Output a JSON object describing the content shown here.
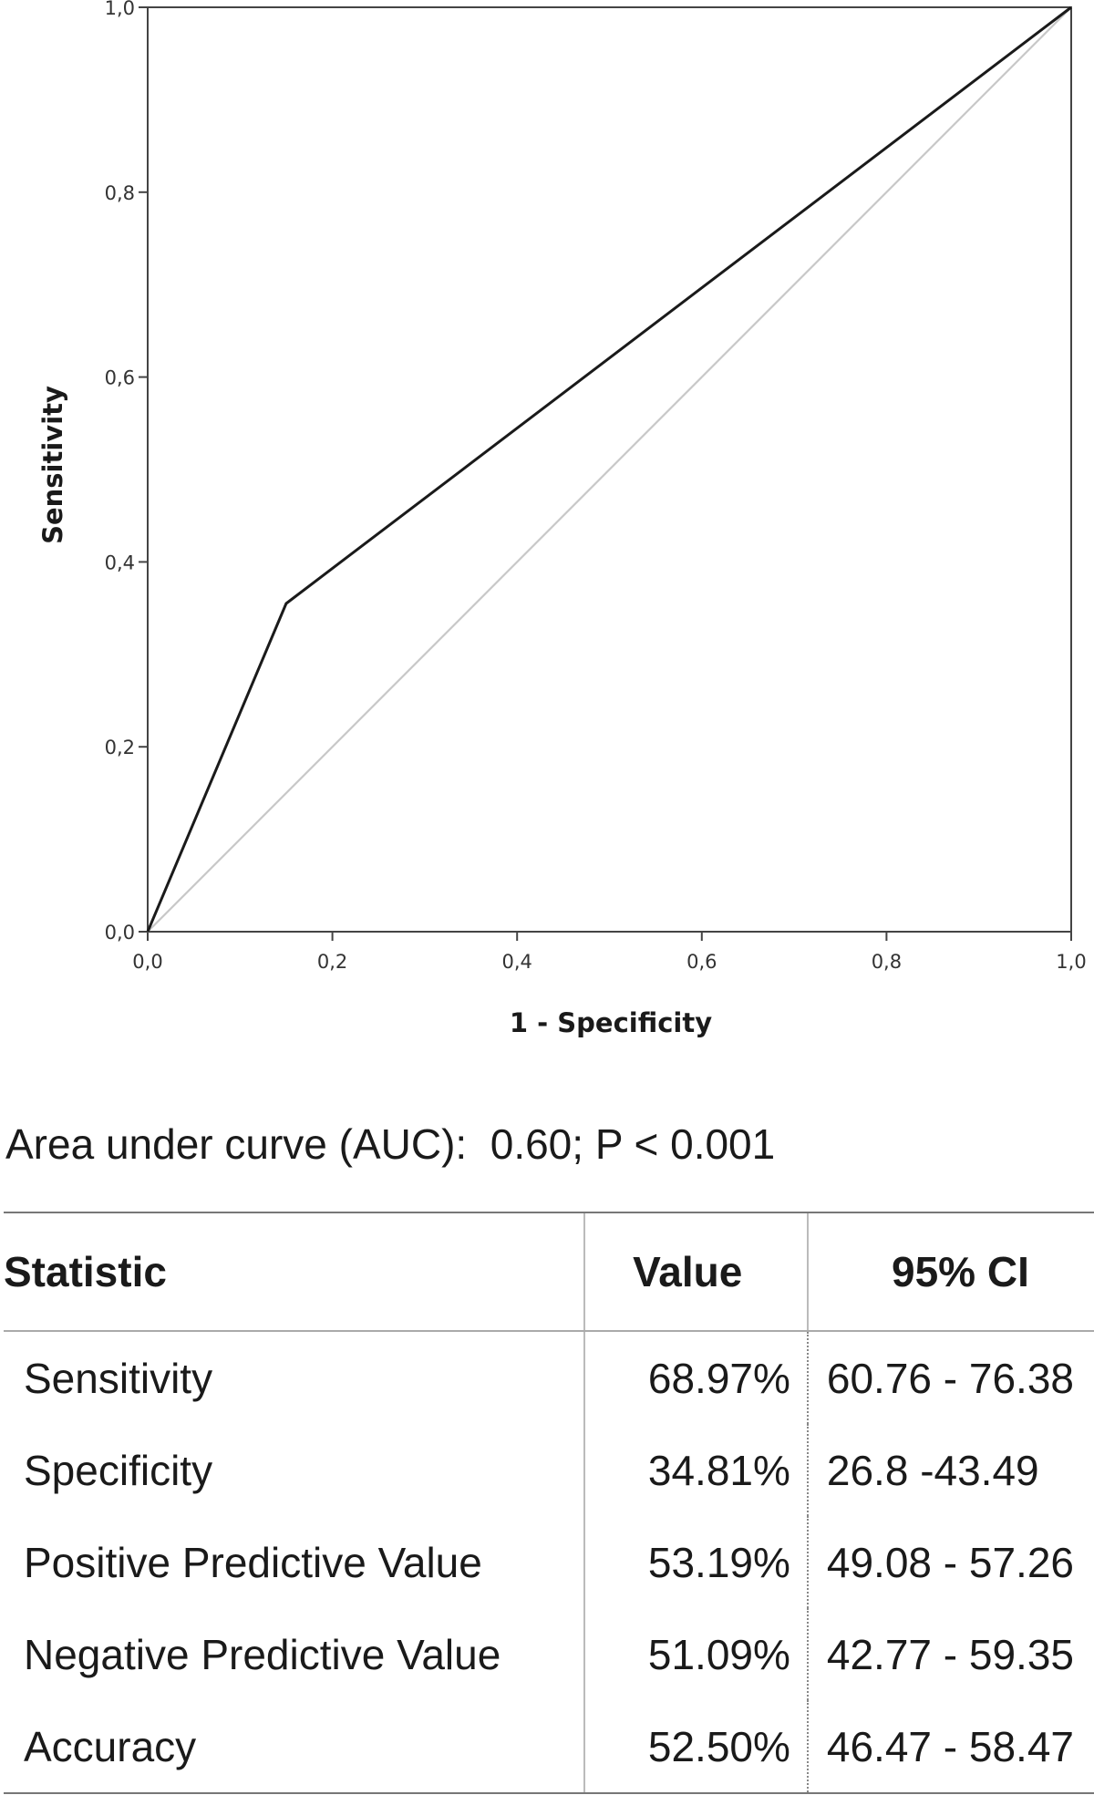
{
  "chart_data": {
    "type": "line",
    "xlabel": "1 - Specificity",
    "ylabel": "Sensitivity",
    "xlim": [
      0,
      1
    ],
    "ylim": [
      0,
      1
    ],
    "x_ticks": [
      "0,0",
      "0,2",
      "0,4",
      "0,6",
      "0,8",
      "1,0"
    ],
    "y_ticks": [
      "0,0",
      "0,2",
      "0,4",
      "0,6",
      "0,8",
      "1,0"
    ],
    "grid": false,
    "series": [
      {
        "values": [
          [
            0,
            0
          ],
          [
            0.15,
            0.355
          ],
          [
            1,
            1
          ]
        ],
        "color": "#1a1a1a"
      },
      {
        "values": [
          [
            0,
            0
          ],
          [
            1,
            1
          ]
        ],
        "color": "#c8c8c8"
      }
    ]
  },
  "auc_text": "Area under curve (AUC):  0.60; P < 0.001",
  "table": {
    "headers": [
      "Statistic",
      "Value",
      "95% CI"
    ],
    "rows": [
      [
        "Sensitivity",
        "68.97%",
        "60.76 - 76.38"
      ],
      [
        "Specificity",
        "34.81%",
        "26.8 -43.49"
      ],
      [
        "Positive Predictive Value",
        "53.19%",
        "49.08 - 57.26"
      ],
      [
        "Negative Predictive Value",
        "51.09%",
        "42.77 - 59.35"
      ],
      [
        "Accuracy",
        "52.50%",
        "46.47 - 58.47"
      ]
    ]
  }
}
